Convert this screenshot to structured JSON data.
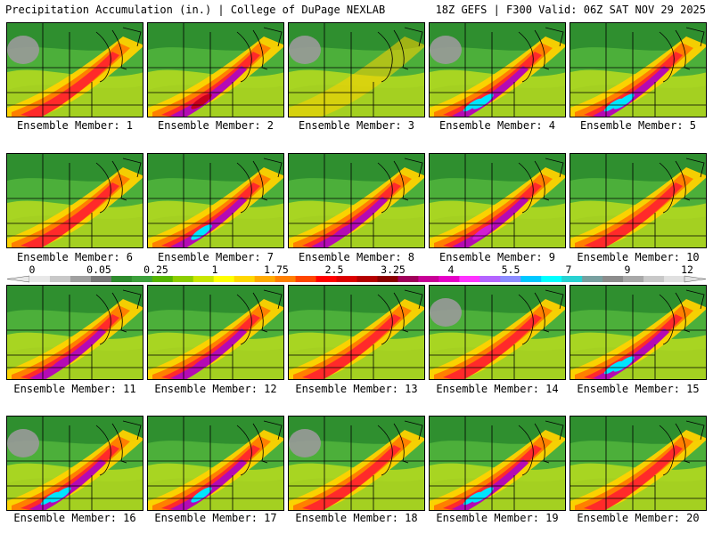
{
  "header": {
    "left": "Precipitation Accumulation (in.) | College of DuPage NEXLAB",
    "right": "18Z GEFS | F300 Valid: 06Z SAT NOV 29 2025"
  },
  "label_prefix": "Ensemble Member: ",
  "members": [
    {
      "label": "Ensemble Member: 1",
      "peak_color": "#ff2a2a",
      "intensity": 1
    },
    {
      "label": "Ensemble Member: 2",
      "peak_color": "#c8001e",
      "intensity": 2
    },
    {
      "label": "Ensemble Member: 3",
      "peak_color": "#ffd200",
      "intensity": 0
    },
    {
      "label": "Ensemble Member: 4",
      "peak_color": "#00e5ff",
      "intensity": 3
    },
    {
      "label": "Ensemble Member: 5",
      "peak_color": "#00e5ff",
      "intensity": 3
    },
    {
      "label": "Ensemble Member: 6",
      "peak_color": "#ff2a2a",
      "intensity": 1
    },
    {
      "label": "Ensemble Member: 7",
      "peak_color": "#00e5ff",
      "intensity": 2
    },
    {
      "label": "Ensemble Member: 8",
      "peak_color": "#b40ab4",
      "intensity": 2
    },
    {
      "label": "Ensemble Member: 9",
      "peak_color": "#d21ed2",
      "intensity": 2
    },
    {
      "label": "Ensemble Member: 10",
      "peak_color": "#ff2a2a",
      "intensity": 1
    },
    {
      "label": "Ensemble Member: 11",
      "peak_color": "#b40ab4",
      "intensity": 2
    },
    {
      "label": "Ensemble Member: 12",
      "peak_color": "#b40ab4",
      "intensity": 2
    },
    {
      "label": "Ensemble Member: 13",
      "peak_color": "#b40ab4",
      "intensity": 1
    },
    {
      "label": "Ensemble Member: 14",
      "peak_color": "#ff2a2a",
      "intensity": 1
    },
    {
      "label": "Ensemble Member: 15",
      "peak_color": "#00e5ff",
      "intensity": 3
    },
    {
      "label": "Ensemble Member: 16",
      "peak_color": "#00e5ff",
      "intensity": 3
    },
    {
      "label": "Ensemble Member: 17",
      "peak_color": "#00e5ff",
      "intensity": 2
    },
    {
      "label": "Ensemble Member: 18",
      "peak_color": "#ff2a2a",
      "intensity": 1
    },
    {
      "label": "Ensemble Member: 19",
      "peak_color": "#00e5ff",
      "intensity": 3
    },
    {
      "label": "Ensemble Member: 20",
      "peak_color": "#ff2a2a",
      "intensity": 1
    }
  ],
  "legend": {
    "tick_labels": [
      "0",
      "0.05",
      "0.25",
      "1",
      "1.75",
      "2.5",
      "3.25",
      "4",
      "5.5",
      "7",
      "9",
      "12"
    ],
    "colors": [
      "#e8e8e8",
      "#c8c8c8",
      "#a0a0a0",
      "#787878",
      "#2e8b2e",
      "#3ca03c",
      "#55b400",
      "#8ccd00",
      "#c8e600",
      "#ffff00",
      "#ffd700",
      "#ffaa00",
      "#ff7f00",
      "#ff4500",
      "#ff0000",
      "#dc0000",
      "#b40000",
      "#8b0000",
      "#a0005a",
      "#c80096",
      "#e600c8",
      "#ff32ff",
      "#b464ff",
      "#8c8cff",
      "#00c8ff",
      "#00ffff",
      "#28d2d2",
      "#78a0a0",
      "#8c8c8c",
      "#a8a8a8",
      "#c8c8c8",
      "#e0e0e0"
    ]
  }
}
